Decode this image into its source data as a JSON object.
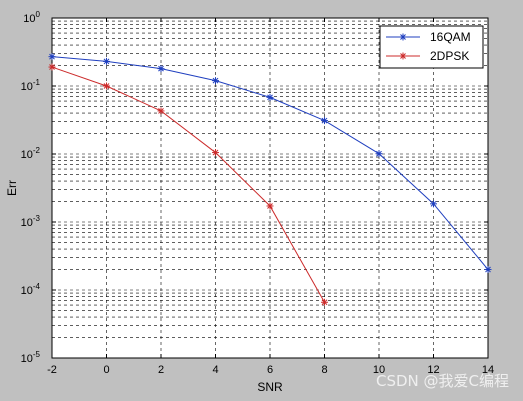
{
  "watermark": "CSDN @我爱C编程",
  "chart_data": {
    "type": "line",
    "title": "",
    "xlabel": "SNR",
    "ylabel": "Err",
    "xlim": [
      -2,
      14
    ],
    "ylim": [
      1e-05,
      1
    ],
    "yscale": "log",
    "grid": true,
    "legend_position": "top-right",
    "x_ticks": [
      -2,
      0,
      2,
      4,
      6,
      8,
      10,
      12,
      14
    ],
    "y_ticks": [
      {
        "base": "10",
        "exp": "-5"
      },
      {
        "base": "10",
        "exp": "-4"
      },
      {
        "base": "10",
        "exp": "-3"
      },
      {
        "base": "10",
        "exp": "-2"
      },
      {
        "base": "10",
        "exp": "-1"
      },
      {
        "base": "10",
        "exp": "0"
      }
    ],
    "series": [
      {
        "name": "16QAM",
        "color": "#1f3fbf",
        "marker": "asterisk",
        "x": [
          -2,
          0,
          2,
          4,
          6,
          8,
          10,
          12,
          14
        ],
        "values": [
          0.27,
          0.23,
          0.18,
          0.12,
          0.068,
          0.031,
          0.0101,
          0.00185,
          0.0002
        ]
      },
      {
        "name": "2DPSK",
        "color": "#cc2b2b",
        "marker": "asterisk",
        "x": [
          -2,
          0,
          2,
          4,
          6,
          8
        ],
        "values": [
          0.19,
          0.1,
          0.043,
          0.0105,
          0.00172,
          6.6e-05
        ]
      }
    ]
  }
}
